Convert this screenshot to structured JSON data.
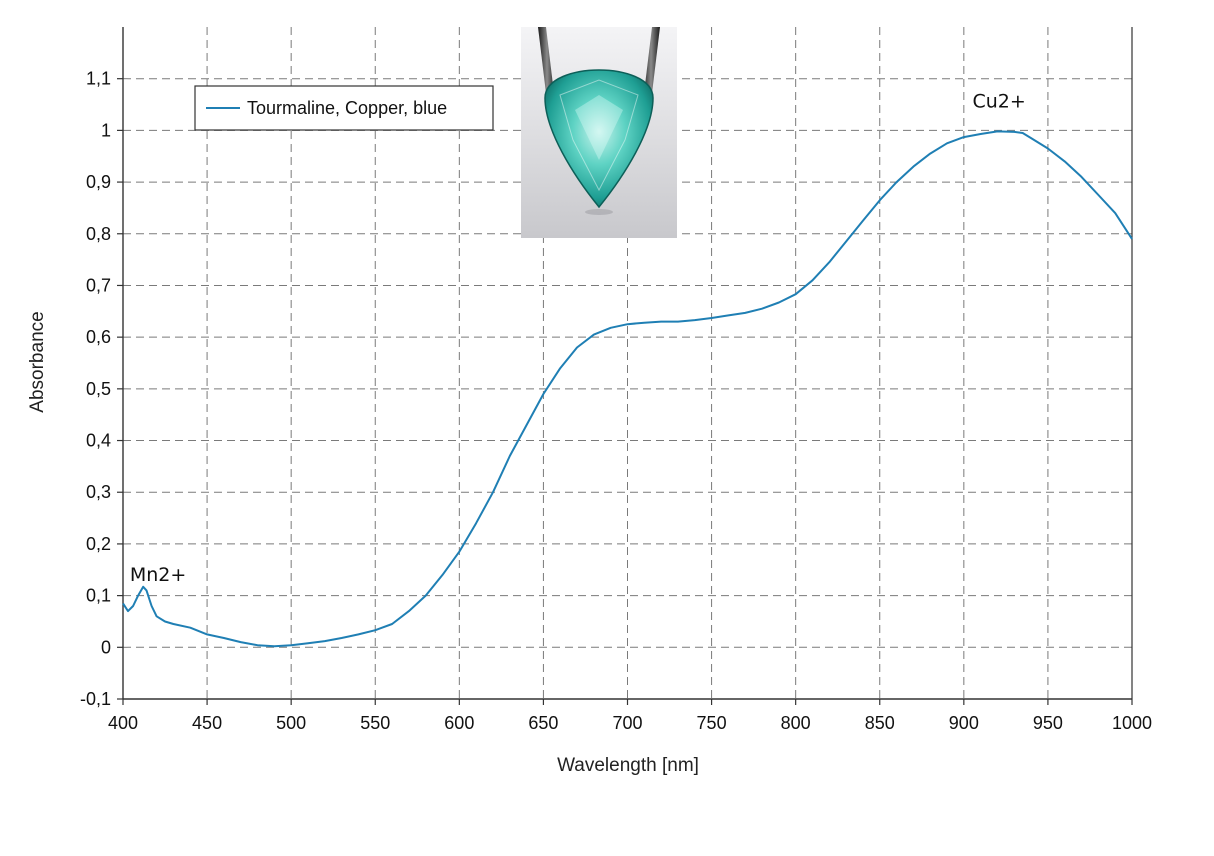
{
  "colors": {
    "series": "#1f7fb4",
    "grid": "#7a7a7a",
    "axis": "#333333",
    "background": "#ffffff"
  },
  "inset_photo": {
    "icon": "tourmaline-gem-photo"
  },
  "chart_data": {
    "type": "line",
    "title": "",
    "xlabel": "Wavelength [nm]",
    "ylabel": "Absorbance",
    "xlim": [
      400,
      1000
    ],
    "ylim": [
      -0.1,
      1.2
    ],
    "grid": true,
    "legend_position": "top-left",
    "x_ticks": [
      400,
      450,
      500,
      550,
      600,
      650,
      700,
      750,
      800,
      850,
      900,
      950,
      1000
    ],
    "x_tick_labels": [
      "400",
      "450",
      "500",
      "550",
      "600",
      "650",
      "700",
      "750",
      "800",
      "850",
      "900",
      "950",
      "1000"
    ],
    "y_ticks": [
      -0.1,
      0,
      0.1,
      0.2,
      0.3,
      0.4,
      0.5,
      0.6,
      0.7,
      0.8,
      0.9,
      1,
      1.1
    ],
    "y_tick_labels": [
      "-0,1",
      "0",
      "0,1",
      "0,2",
      "0,3",
      "0,4",
      "0,5",
      "0,6",
      "0,7",
      "0,8",
      "0,9",
      "1",
      "1,1"
    ],
    "series": [
      {
        "name": "Tourmaline, Copper, blue",
        "x": [
          400,
          403,
          406,
          409,
          412,
          414,
          417,
          420,
          425,
          430,
          440,
          450,
          460,
          470,
          480,
          490,
          500,
          510,
          520,
          530,
          540,
          550,
          560,
          570,
          580,
          590,
          600,
          610,
          620,
          630,
          640,
          650,
          660,
          670,
          680,
          690,
          700,
          710,
          720,
          730,
          740,
          750,
          760,
          770,
          780,
          790,
          800,
          810,
          820,
          830,
          840,
          850,
          860,
          870,
          880,
          890,
          900,
          910,
          920,
          930,
          935,
          940,
          950,
          960,
          970,
          980,
          990,
          1000
        ],
        "values": [
          0.085,
          0.07,
          0.08,
          0.1,
          0.117,
          0.11,
          0.08,
          0.06,
          0.05,
          0.045,
          0.038,
          0.025,
          0.018,
          0.01,
          0.004,
          0.002,
          0.004,
          0.008,
          0.012,
          0.018,
          0.025,
          0.033,
          0.045,
          0.07,
          0.1,
          0.14,
          0.185,
          0.24,
          0.3,
          0.37,
          0.43,
          0.49,
          0.54,
          0.58,
          0.605,
          0.618,
          0.625,
          0.628,
          0.63,
          0.63,
          0.633,
          0.637,
          0.642,
          0.647,
          0.655,
          0.667,
          0.683,
          0.71,
          0.745,
          0.785,
          0.825,
          0.865,
          0.9,
          0.93,
          0.955,
          0.975,
          0.987,
          0.993,
          0.998,
          0.997,
          0.995,
          0.985,
          0.965,
          0.94,
          0.91,
          0.875,
          0.84,
          0.79
        ]
      }
    ],
    "annotations": [
      {
        "text": "Mn2+",
        "x": 413,
        "y": 0.15
      },
      {
        "text": "Cu2+",
        "x": 920,
        "y": 1.06
      }
    ]
  }
}
